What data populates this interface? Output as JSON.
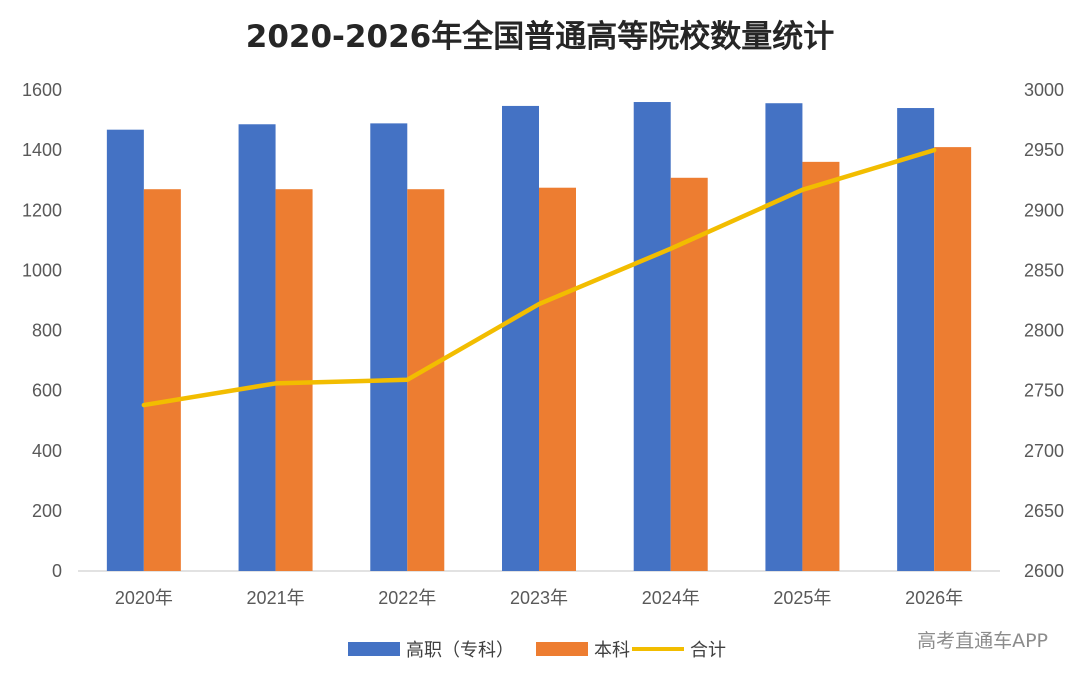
{
  "chart_data": {
    "type": "bar",
    "title": "2020-2026年全国普通高等院校数量统计",
    "categories": [
      "2020年",
      "2021年",
      "2022年",
      "2023年",
      "2024年",
      "2025年",
      "2026年"
    ],
    "series": [
      {
        "name": "高职（专科）",
        "type": "bar",
        "axis": "left",
        "color": "#4472C4",
        "values": [
          1468,
          1486,
          1489,
          1547,
          1560,
          1556,
          1540
        ]
      },
      {
        "name": "本科",
        "type": "bar",
        "axis": "left",
        "color": "#ED7D31",
        "values": [
          1270,
          1270,
          1270,
          1275,
          1308,
          1361,
          1410
        ]
      },
      {
        "name": "合计",
        "type": "line",
        "axis": "right",
        "color": "#F2BD00",
        "values": [
          2738,
          2756,
          2759,
          2822,
          2868,
          2917,
          2950
        ]
      }
    ],
    "y_left": {
      "min": 0,
      "max": 1600,
      "ticks": [
        "0",
        "200",
        "400",
        "600",
        "800",
        "1000",
        "1200",
        "1400",
        "1600"
      ]
    },
    "y_right": {
      "min": 2600,
      "max": 3000,
      "ticks": [
        "2600",
        "2650",
        "2700",
        "2750",
        "2800",
        "2850",
        "2900",
        "2950",
        "3000"
      ]
    },
    "xlabel": "",
    "ylabel": "",
    "grid": false,
    "legend": "bottom"
  },
  "watermark": "高考直通车APP"
}
